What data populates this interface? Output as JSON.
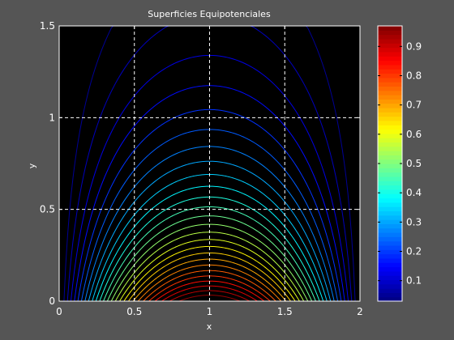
{
  "chart_data": {
    "type": "contour",
    "title": "Superficies Equipotenciales",
    "xlabel": "x",
    "ylabel": "y",
    "xlim": [
      0,
      2
    ],
    "ylim": [
      0,
      1.5
    ],
    "x_ticks": [
      "0",
      "0.5",
      "1",
      "1.5",
      "2"
    ],
    "y_ticks": [
      "0",
      "0.5",
      "1",
      "1.5"
    ],
    "grid": true,
    "colormap": "jet",
    "colorbar": {
      "range": [
        0.03,
        0.97
      ],
      "ticks": [
        "0.1",
        "0.2",
        "0.3",
        "0.4",
        "0.5",
        "0.6",
        "0.7",
        "0.8",
        "0.9"
      ]
    },
    "contour_levels": {
      "start": 0.05,
      "end": 0.95,
      "count": 26
    },
    "colors": {
      "figure_bg": "#555555",
      "axes_bg": "#000000",
      "axis_text": "#ffffff",
      "grid": "#ffffff"
    }
  }
}
